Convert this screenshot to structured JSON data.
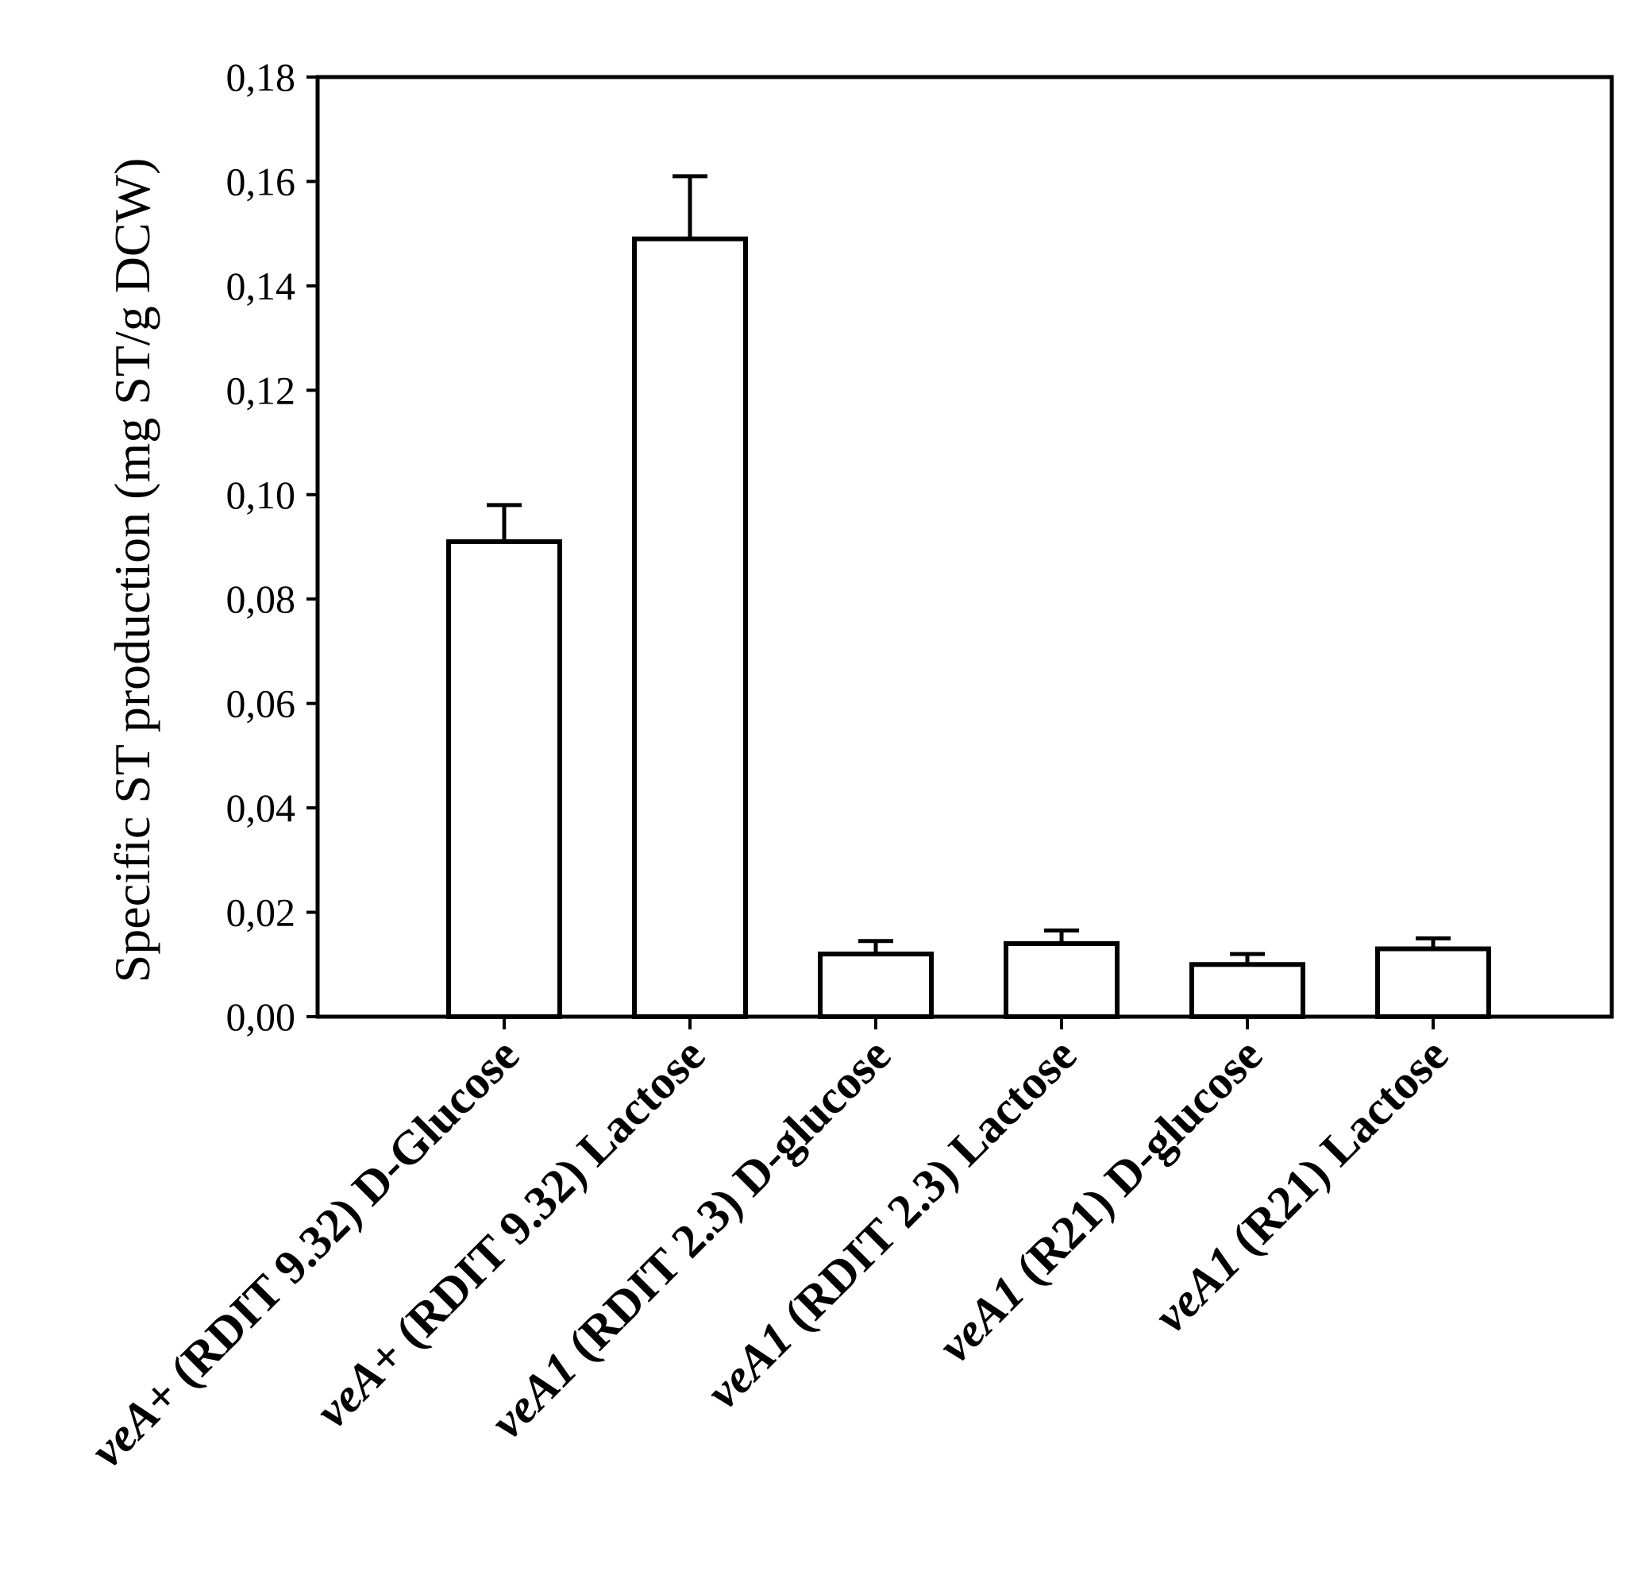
{
  "chart_data": {
    "type": "bar",
    "title": "",
    "ylabel": "Specific ST production (mg ST/g DCW)",
    "xlabel": "",
    "ylim": [
      0,
      0.18
    ],
    "yticks": [
      "0,00",
      "0,02",
      "0,04",
      "0,06",
      "0,08",
      "0,10",
      "0,12",
      "0,14",
      "0,16",
      "0,18"
    ],
    "grid": false,
    "legend": "none",
    "bar_fill": "#ffffff",
    "bar_stroke": "#000000",
    "categories": [
      {
        "gene": "veA",
        "suffix": "+ (RDIT 9.32) D-Glucose",
        "label": "veA+ (RDIT 9.32) D-Glucose"
      },
      {
        "gene": "veA",
        "suffix": "+ (RDIT 9.32) Lactose",
        "label": "veA+ (RDIT 9.32) Lactose"
      },
      {
        "gene": "veA1",
        "suffix": " (RDIT 2.3) D-glucose",
        "label": "veA1 (RDIT 2.3) D-glucose"
      },
      {
        "gene": "veA1",
        "suffix": " (RDIT 2.3) Lactose",
        "label": "veA1 (RDIT 2.3) Lactose"
      },
      {
        "gene": "veA1",
        "suffix": " (R21) D-glucose",
        "label": "veA1 (R21) D-glucose"
      },
      {
        "gene": "veA1",
        "suffix": " (R21) Lactose",
        "label": "veA1 (R21) Lactose"
      }
    ],
    "values": [
      0.091,
      0.149,
      0.012,
      0.014,
      0.01,
      0.013
    ],
    "errors": [
      0.007,
      0.012,
      0.0025,
      0.0025,
      0.002,
      0.002
    ]
  }
}
